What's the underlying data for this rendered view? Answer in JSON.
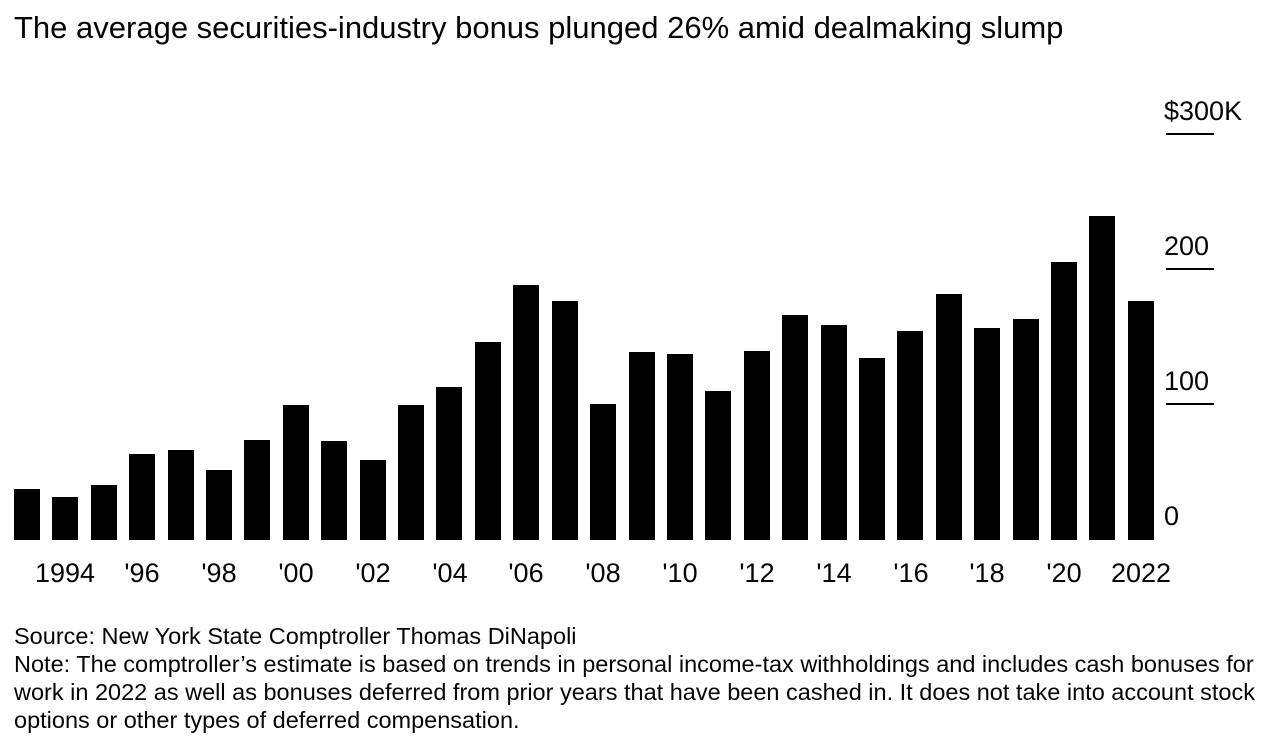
{
  "title": "The average securities-industry bonus plunged 26% amid dealmaking slump",
  "chart_data": {
    "type": "bar",
    "title": "The average securities-industry bonus plunged 26% amid dealmaking slump",
    "xlabel": "",
    "ylabel": "Average securities-industry bonus (thousands of USD)",
    "unit": "thousand USD",
    "ylim": [
      0,
      300
    ],
    "grid": "off",
    "legend": "none",
    "bar_color": "#000000",
    "background": "#ffffff",
    "x": [
      1993,
      1994,
      1995,
      1996,
      1997,
      1998,
      1999,
      2000,
      2001,
      2002,
      2003,
      2004,
      2005,
      2006,
      2007,
      2008,
      2009,
      2010,
      2011,
      2012,
      2013,
      2014,
      2015,
      2016,
      2017,
      2018,
      2019,
      2020,
      2021,
      2022
    ],
    "values": [
      38,
      32,
      41,
      64,
      67,
      52,
      74,
      100,
      73,
      59,
      100,
      113,
      147,
      189,
      177,
      101,
      139,
      138,
      110,
      140,
      167,
      159,
      135,
      155,
      182,
      157,
      164,
      206,
      240,
      177
    ],
    "yticks": [
      {
        "value": 300,
        "label": "$300K",
        "line": true
      },
      {
        "value": 200,
        "label": "200",
        "line": true
      },
      {
        "value": 100,
        "label": "100",
        "line": true
      },
      {
        "value": 0,
        "label": "0",
        "line": false
      }
    ],
    "xticks": [
      {
        "year": 1994,
        "label": "1994"
      },
      {
        "year": 1996,
        "label": "'96"
      },
      {
        "year": 1998,
        "label": "'98"
      },
      {
        "year": 2000,
        "label": "'00"
      },
      {
        "year": 2002,
        "label": "'02"
      },
      {
        "year": 2004,
        "label": "'04"
      },
      {
        "year": 2006,
        "label": "'06"
      },
      {
        "year": 2008,
        "label": "'08"
      },
      {
        "year": 2010,
        "label": "'10"
      },
      {
        "year": 2012,
        "label": "'12"
      },
      {
        "year": 2014,
        "label": "'14"
      },
      {
        "year": 2016,
        "label": "'16"
      },
      {
        "year": 2018,
        "label": "'18"
      },
      {
        "year": 2020,
        "label": "'20"
      },
      {
        "year": 2022,
        "label": "2022"
      }
    ]
  },
  "footer": {
    "source": "Source: New York State Comptroller Thomas DiNapoli",
    "note": "Note: The comptroller’s estimate is based on trends in personal income-tax withholdings and includes cash bonuses for work in 2022 as well as bonuses deferred from prior years that have been cashed in. It does not take into account stock options or other types of deferred compensation."
  }
}
